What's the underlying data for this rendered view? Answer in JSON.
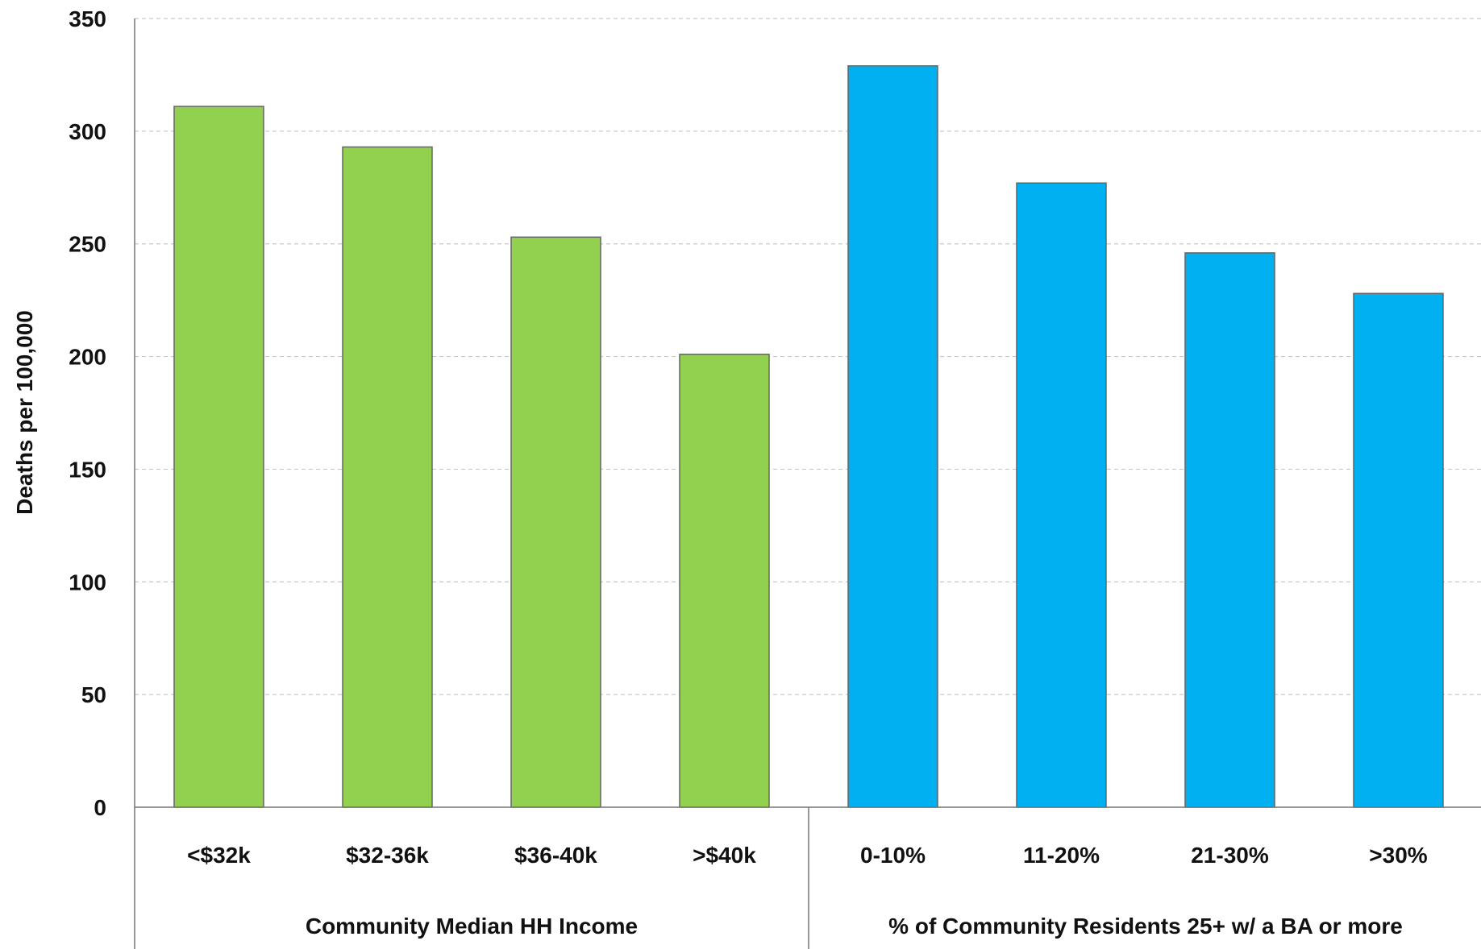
{
  "chart_data": {
    "type": "bar",
    "ylabel": "Deaths per 100,000",
    "ylim": [
      0,
      350
    ],
    "yticks": [
      0,
      50,
      100,
      150,
      200,
      250,
      300,
      350
    ],
    "grid": true,
    "groups": [
      {
        "label": "Community Median HH Income",
        "color": "#92D050",
        "categories": [
          "<$32k",
          "$32-36k",
          "$36-40k",
          ">$40k"
        ],
        "values": [
          311,
          293,
          253,
          201
        ]
      },
      {
        "label": "% of Community Residents 25+ w/ a BA or more",
        "color": "#00B0F0",
        "categories": [
          "0-10%",
          "11-20%",
          "21-30%",
          ">30%"
        ],
        "values": [
          329,
          277,
          246,
          228
        ]
      }
    ]
  }
}
